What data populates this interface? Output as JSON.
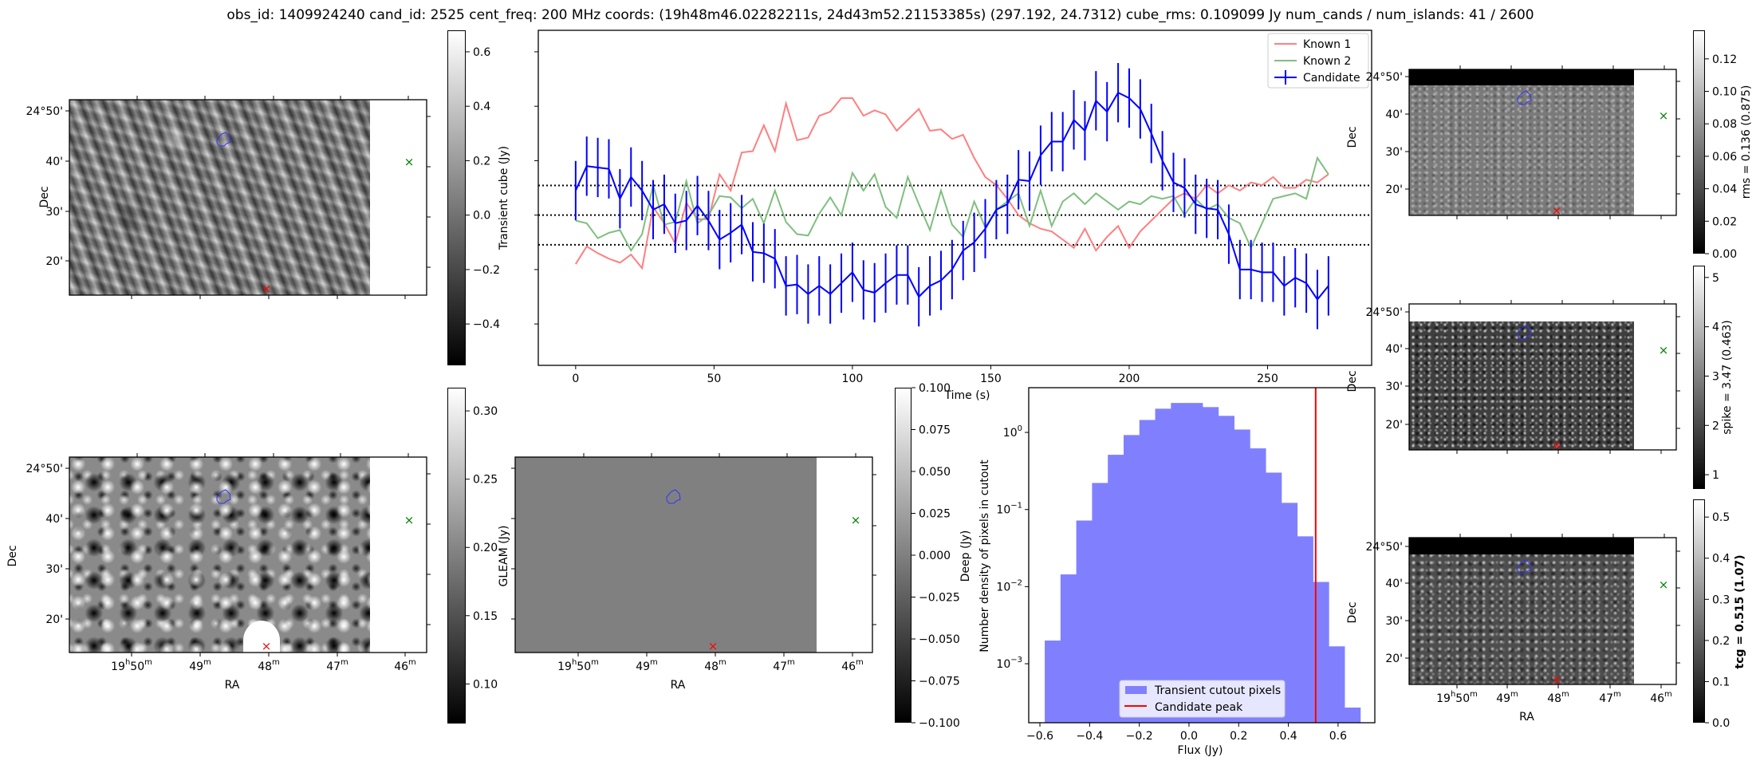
{
  "title": "obs_id: 1409924240 cand_id: 2525 cent_freq: 200 MHz coords: (19h48m46.02282211s, 24d43m52.21153385s) (297.192, 24.7312) cube_rms: 0.109099 Jy num_cands / num_islands: 41 / 2600",
  "colors": {
    "known1": "#ff7f7f",
    "known2": "#7fbf7f",
    "candidate": "#0000ff",
    "hist": "#8080ff",
    "peak": "#ff0000",
    "contour": "#3333ff",
    "candidate_marker": "#ff0000",
    "known_marker": "#008000"
  },
  "axis_labels": {
    "ra": "RA",
    "dec": "Dec"
  },
  "ra_ticks": [
    [
      "19",
      "h",
      "50",
      "m"
    ],
    [
      "49",
      "",
      "",
      "m"
    ],
    [
      "48",
      "",
      "",
      "m"
    ],
    [
      "47",
      "",
      "",
      "m"
    ],
    [
      "46",
      "",
      "",
      "m"
    ]
  ],
  "dec_ticks": [
    "24°50'",
    "40'",
    "30'",
    "20'"
  ],
  "markers": {
    "candidate": "×",
    "known": "×"
  },
  "colorbars": {
    "transient": {
      "label": "Transient cube (Jy)",
      "range": [
        -0.552,
        0.679
      ],
      "ticks": [
        0.6,
        0.4,
        0.2,
        0.0,
        -0.2,
        -0.4
      ],
      "tick_labels": [
        "0.6",
        "0.4",
        "0.2",
        "0.0",
        "−0.2",
        "−0.4"
      ]
    },
    "gleam": {
      "label": "GLEAM (Jy)",
      "range": [
        0.071,
        0.317
      ],
      "ticks": [
        0.3,
        0.25,
        0.2,
        0.15,
        0.1
      ],
      "tick_labels": [
        "0.30",
        "0.25",
        "0.20",
        "0.15",
        "0.10"
      ]
    },
    "deep": {
      "label": "Deep (Jy)",
      "range": [
        -0.1,
        0.1
      ],
      "ticks": [
        0.1,
        0.075,
        0.05,
        0.025,
        0,
        -0.025,
        -0.05,
        -0.075,
        -0.1
      ],
      "tick_labels": [
        "0.100",
        "0.075",
        "0.050",
        "0.025",
        "0.000",
        "−0.025",
        "−0.050",
        "−0.075",
        "−0.100"
      ]
    },
    "rms": {
      "label": "rms = 0.136 (0.875)",
      "range": [
        0,
        0.1376
      ],
      "ticks": [
        0.12,
        0.1,
        0.08,
        0.06,
        0.04,
        0.02,
        0.0
      ],
      "tick_labels": [
        "0.12",
        "0.10",
        "0.08",
        "0.06",
        "0.04",
        "0.02",
        "0.00"
      ]
    },
    "spike": {
      "label": "spike = 3.47 (0.463)",
      "range": [
        0.71,
        5.24
      ],
      "ticks": [
        5,
        4,
        3,
        2,
        1
      ],
      "tick_labels": [
        "5",
        "4",
        "3",
        "2",
        "1"
      ]
    },
    "tcg": {
      "label": "tcg = 0.515 (1.07)",
      "range": [
        0,
        0.543
      ],
      "ticks": [
        0.5,
        0.4,
        0.3,
        0.2,
        0.1,
        0.0
      ],
      "tick_labels": [
        "0.5",
        "0.4",
        "0.3",
        "0.2",
        "0.1",
        "0.0"
      ]
    }
  },
  "chart_data": [
    {
      "type": "line",
      "title": "",
      "xlabel": "Time (s)",
      "ylabel": "",
      "xlim": [
        -13.5,
        287.6
      ],
      "ylim": [
        -0.552,
        0.679
      ],
      "xticks": [
        0,
        50,
        100,
        150,
        200,
        250
      ],
      "yticks": [
        0.6,
        0.4,
        0.2,
        0.0,
        -0.2,
        -0.4
      ],
      "t_start": 0,
      "t_step": 4,
      "hlines": [
        0.109099,
        0.0,
        -0.109099
      ],
      "legend_position": "top-right",
      "series": [
        {
          "name": "Known 1",
          "values": [
            -0.18,
            -0.115,
            -0.14,
            -0.16,
            -0.175,
            -0.145,
            -0.195,
            0.03,
            -0.03,
            -0.105,
            0.045,
            -0.015,
            -0.015,
            0.15,
            0.09,
            0.23,
            0.235,
            0.33,
            0.235,
            0.41,
            0.275,
            0.285,
            0.365,
            0.38,
            0.43,
            0.43,
            0.365,
            0.385,
            0.37,
            0.31,
            0.35,
            0.39,
            0.31,
            0.315,
            0.28,
            0.295,
            0.21,
            0.14,
            0.11,
            0.06,
            0.0,
            -0.03,
            -0.05,
            -0.06,
            -0.09,
            -0.12,
            -0.05,
            -0.13,
            -0.08,
            -0.04,
            -0.12,
            -0.06,
            -0.02,
            0.02,
            0.06,
            0.08,
            0.06,
            0.11,
            0.08,
            0.11,
            0.09,
            0.12,
            0.11,
            0.14,
            0.1,
            0.1,
            0.13,
            0.12,
            0.15
          ]
        },
        {
          "name": "Known 2",
          "values": [
            -0.02,
            -0.03,
            -0.085,
            -0.065,
            -0.055,
            -0.13,
            -0.07,
            0.11,
            -0.035,
            -0.025,
            0.125,
            -0.03,
            0.0,
            0.07,
            0.065,
            0.025,
            0.06,
            -0.03,
            0.09,
            -0.025,
            -0.07,
            -0.075,
            0.005,
            0.065,
            0.0,
            0.155,
            0.09,
            0.15,
            0.03,
            -0.01,
            0.14,
            0.04,
            -0.055,
            0.09,
            -0.035,
            -0.08,
            0.05,
            -0.045,
            0.02,
            0.05,
            0.08,
            -0.04,
            0.09,
            -0.04,
            0.05,
            0.08,
            0.04,
            0.08,
            0.05,
            0.02,
            0.05,
            0.04,
            0.07,
            0.06,
            0.07,
            0.0,
            0.06,
            0.02,
            0.04,
            -0.01,
            -0.03,
            -0.12,
            -0.03,
            0.06,
            0.07,
            0.08,
            0.06,
            0.21,
            0.15
          ]
        },
        {
          "name": "Candidate",
          "error": 0.109,
          "values": [
            0.09,
            0.18,
            0.175,
            0.17,
            0.06,
            0.14,
            0.09,
            0.02,
            0.04,
            -0.03,
            -0.02,
            0.035,
            -0.02,
            -0.09,
            -0.065,
            -0.035,
            -0.135,
            -0.14,
            -0.16,
            -0.26,
            -0.255,
            -0.29,
            -0.26,
            -0.29,
            -0.25,
            -0.21,
            -0.275,
            -0.285,
            -0.25,
            -0.22,
            -0.22,
            -0.3,
            -0.26,
            -0.24,
            -0.2,
            -0.13,
            -0.1,
            -0.05,
            0.02,
            0.04,
            0.13,
            0.125,
            0.22,
            0.27,
            0.27,
            0.35,
            0.31,
            0.42,
            0.38,
            0.45,
            0.43,
            0.39,
            0.3,
            0.2,
            0.12,
            0.1,
            0.04,
            0.025,
            0.02,
            -0.07,
            -0.2,
            -0.2,
            -0.21,
            -0.21,
            -0.26,
            -0.23,
            -0.25,
            -0.31,
            -0.26
          ]
        }
      ]
    },
    {
      "type": "bar",
      "title": "",
      "xlabel": "Flux (Jy)",
      "ylabel": "Number density of pixels in cutout",
      "yscale": "log",
      "xlim": [
        -0.645,
        0.748
      ],
      "ylim_log10": [
        -3.765,
        0.58
      ],
      "xticks": [
        -0.6,
        -0.4,
        -0.2,
        0.0,
        0.2,
        0.4,
        0.6
      ],
      "xtick_labels": [
        "−0.6",
        "−0.4",
        "−0.2",
        "0.0",
        "0.2",
        "0.4",
        "0.6"
      ],
      "yticks_log10": [
        0,
        -1,
        -2,
        -3
      ],
      "ytick_labels": [
        [
          "10",
          "0"
        ],
        [
          "10",
          "−1"
        ],
        [
          "10",
          "−2"
        ],
        [
          "10",
          "−3"
        ]
      ],
      "bin_start": -0.5806,
      "bin_width": 0.0635,
      "values": [
        0.002,
        0.0144,
        0.072,
        0.221,
        0.513,
        0.924,
        1.45,
        2.03,
        2.41,
        2.41,
        2.13,
        1.64,
        1.09,
        0.621,
        0.301,
        0.122,
        0.0449,
        0.0115,
        0.00168,
        0.00027
      ],
      "candidate_peak": 0.51,
      "legend_position": "bottom-center",
      "legend": [
        "Transient cutout pixels",
        "Candidate peak"
      ]
    }
  ]
}
